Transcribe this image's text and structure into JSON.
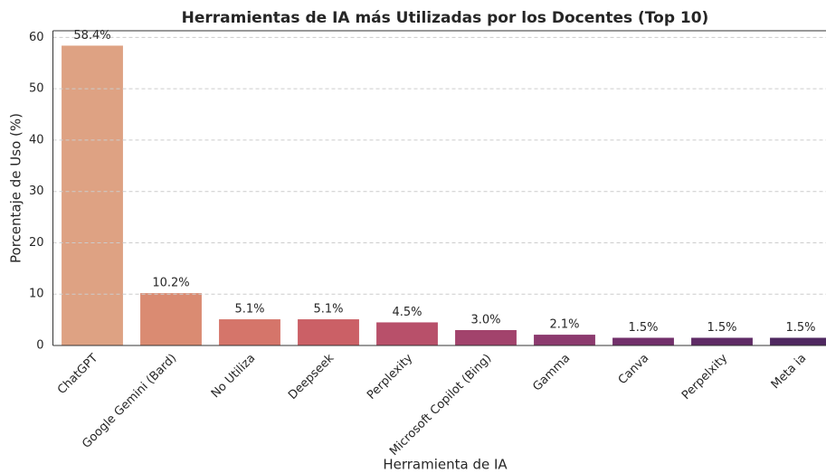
{
  "chart_data": {
    "type": "bar",
    "title": "Herramientas de IA más Utilizadas por los Docentes (Top 10)",
    "x_label": "Herramienta de IA",
    "y_label": "Porcentaje de Uso (%)",
    "categories": [
      "ChatGPT",
      "Google Gemini (Bard)",
      "No Utiliza",
      "Deepseek",
      "Perplexity",
      "Microsoft Copilot (Bing)",
      "Gamma",
      "Canva",
      "Perpelxity",
      "Meta ia"
    ],
    "values": [
      58.4,
      10.2,
      5.1,
      5.1,
      4.5,
      3.0,
      2.1,
      1.5,
      1.5,
      1.5
    ],
    "value_labels": [
      "58.4%",
      "10.2%",
      "5.1%",
      "5.1%",
      "4.5%",
      "3.0%",
      "2.1%",
      "1.5%",
      "1.5%",
      "1.5%"
    ],
    "colors": [
      "#dea283",
      "#da8b72",
      "#d5756a",
      "#cb6066",
      "#b8506a",
      "#a2436c",
      "#8c3a6e",
      "#72306b",
      "#5f2b66",
      "#4f2860"
    ],
    "ylim": [
      0,
      61.3
    ],
    "yticks": [
      0,
      10,
      20,
      30,
      40,
      50,
      60
    ],
    "grid": true
  }
}
